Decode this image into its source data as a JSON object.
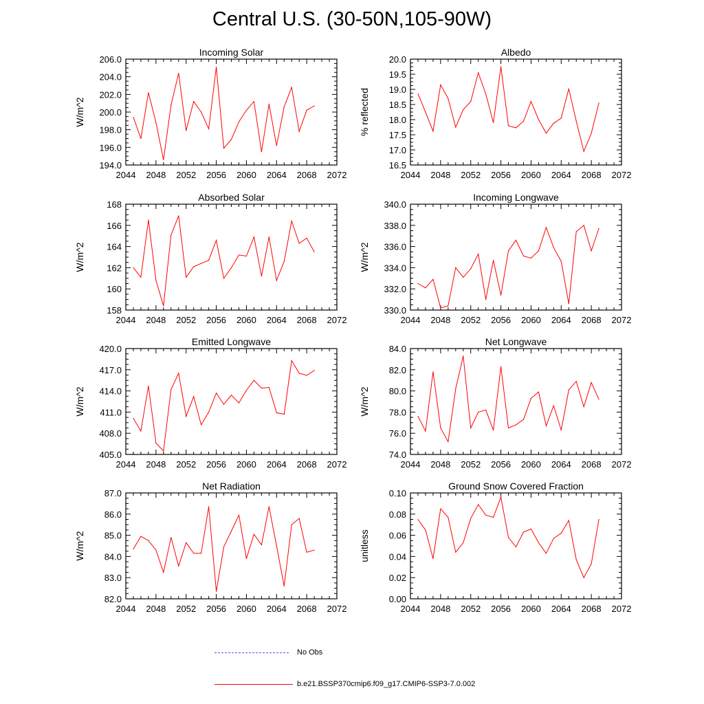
{
  "title": "Central U.S. (30-50N,105-90W)",
  "legend": {
    "no_obs_label": "No Obs",
    "model_label": "b.e21.BSSP370cmip6.f09_g17.CMIP6-SSP3-7.0.002",
    "no_obs_color": "#5050ff",
    "model_color": "#ff0000"
  },
  "chart_data": [
    {
      "type": "line",
      "title": "Incoming Solar",
      "xlabel": "",
      "ylabel": "W/m^2",
      "xlim": [
        2044,
        2072
      ],
      "ylim": [
        194,
        206
      ],
      "xticks": [
        "2044",
        "2048",
        "2052",
        "2056",
        "2060",
        "2064",
        "2068",
        "2072"
      ],
      "yticks": [
        "194.0",
        "196.0",
        "198.0",
        "200.0",
        "202.0",
        "204.0",
        "206.0"
      ],
      "x": [
        2045,
        2046,
        2047,
        2048,
        2049,
        2050,
        2051,
        2052,
        2053,
        2054,
        2055,
        2056,
        2057,
        2058,
        2059,
        2060,
        2061,
        2062,
        2063,
        2064,
        2065,
        2066,
        2067,
        2068,
        2069
      ],
      "series": [
        {
          "color": "#ff0000",
          "values": [
            199.4,
            197.0,
            202.2,
            198.8,
            194.6,
            200.8,
            204.4,
            197.9,
            201.2,
            200.0,
            198.1,
            205.1,
            195.9,
            196.9,
            198.9,
            200.2,
            201.2,
            195.5,
            200.9,
            196.2,
            200.6,
            202.8,
            197.8,
            200.2,
            200.7
          ]
        }
      ]
    },
    {
      "type": "line",
      "title": "Albedo",
      "xlabel": "",
      "ylabel": "% reflected",
      "xlim": [
        2044,
        2072
      ],
      "ylim": [
        16.5,
        20
      ],
      "xticks": [
        "2044",
        "2048",
        "2052",
        "2056",
        "2060",
        "2064",
        "2068",
        "2072"
      ],
      "yticks": [
        "16.5",
        "17.0",
        "17.5",
        "18.0",
        "18.5",
        "19.0",
        "19.5",
        "20.0"
      ],
      "x": [
        2045,
        2046,
        2047,
        2048,
        2049,
        2050,
        2051,
        2052,
        2053,
        2054,
        2055,
        2056,
        2057,
        2058,
        2059,
        2060,
        2061,
        2062,
        2063,
        2064,
        2065,
        2066,
        2067,
        2068,
        2069
      ],
      "series": [
        {
          "color": "#ff0000",
          "values": [
            18.85,
            18.25,
            17.62,
            19.15,
            18.7,
            17.75,
            18.33,
            18.6,
            19.55,
            18.85,
            17.9,
            19.75,
            17.8,
            17.73,
            17.95,
            18.6,
            18.0,
            17.55,
            17.88,
            18.05,
            19.02,
            17.95,
            16.95,
            17.55,
            18.55
          ]
        }
      ]
    },
    {
      "type": "line",
      "title": "Absorbed Solar",
      "xlabel": "",
      "ylabel": "W/m^2",
      "xlim": [
        2044,
        2072
      ],
      "ylim": [
        158,
        168
      ],
      "xticks": [
        "2044",
        "2048",
        "2052",
        "2056",
        "2060",
        "2064",
        "2068",
        "2072"
      ],
      "yticks": [
        "158",
        "160",
        "162",
        "164",
        "166",
        "168"
      ],
      "x": [
        2045,
        2046,
        2047,
        2048,
        2049,
        2050,
        2051,
        2052,
        2053,
        2054,
        2055,
        2056,
        2057,
        2058,
        2059,
        2060,
        2061,
        2062,
        2063,
        2064,
        2065,
        2066,
        2067,
        2068,
        2069
      ],
      "series": [
        {
          "color": "#ff0000",
          "values": [
            162.0,
            161.1,
            166.5,
            160.8,
            158.4,
            165.1,
            166.9,
            161.1,
            162.1,
            162.4,
            162.7,
            164.6,
            161.0,
            162.0,
            163.2,
            163.1,
            164.9,
            161.2,
            164.9,
            160.8,
            162.6,
            166.4,
            164.3,
            164.8,
            163.5
          ]
        }
      ]
    },
    {
      "type": "line",
      "title": "Incoming Longwave",
      "xlabel": "",
      "ylabel": "W/m^2",
      "xlim": [
        2044,
        2072
      ],
      "ylim": [
        330,
        340
      ],
      "xticks": [
        "2044",
        "2048",
        "2052",
        "2056",
        "2060",
        "2064",
        "2068",
        "2072"
      ],
      "yticks": [
        "330.0",
        "332.0",
        "334.0",
        "336.0",
        "338.0",
        "340.0"
      ],
      "x": [
        2045,
        2046,
        2047,
        2048,
        2049,
        2050,
        2051,
        2052,
        2053,
        2054,
        2055,
        2056,
        2057,
        2058,
        2059,
        2060,
        2061,
        2062,
        2063,
        2064,
        2065,
        2066,
        2067,
        2068,
        2069
      ],
      "series": [
        {
          "color": "#ff0000",
          "values": [
            332.5,
            332.1,
            332.9,
            330.2,
            330.4,
            334.0,
            333.1,
            333.9,
            335.3,
            331.0,
            334.7,
            331.4,
            335.6,
            336.6,
            335.1,
            334.9,
            335.6,
            337.8,
            335.9,
            334.6,
            330.6,
            337.4,
            338.0,
            335.6,
            337.7
          ]
        }
      ]
    },
    {
      "type": "line",
      "title": "Emitted Longwave",
      "xlabel": "",
      "ylabel": "W/m^2",
      "xlim": [
        2044,
        2072
      ],
      "ylim": [
        405,
        420
      ],
      "xticks": [
        "2044",
        "2048",
        "2052",
        "2056",
        "2060",
        "2064",
        "2068",
        "2072"
      ],
      "yticks": [
        "405.0",
        "408.0",
        "411.0",
        "414.0",
        "417.0",
        "420.0"
      ],
      "x": [
        2045,
        2046,
        2047,
        2048,
        2049,
        2050,
        2051,
        2052,
        2053,
        2054,
        2055,
        2056,
        2057,
        2058,
        2059,
        2060,
        2061,
        2062,
        2063,
        2064,
        2065,
        2066,
        2067,
        2068,
        2069
      ],
      "series": [
        {
          "color": "#ff0000",
          "values": [
            410.1,
            408.3,
            414.7,
            406.6,
            405.5,
            414.2,
            416.5,
            410.4,
            413.2,
            409.2,
            411.0,
            413.7,
            412.1,
            413.4,
            412.3,
            414.1,
            415.5,
            414.4,
            414.5,
            410.9,
            410.7,
            418.3,
            416.5,
            416.2,
            416.9
          ]
        }
      ]
    },
    {
      "type": "line",
      "title": "Net Longwave",
      "xlabel": "",
      "ylabel": "W/m^2",
      "xlim": [
        2044,
        2072
      ],
      "ylim": [
        74,
        84
      ],
      "xticks": [
        "2044",
        "2048",
        "2052",
        "2056",
        "2060",
        "2064",
        "2068",
        "2072"
      ],
      "yticks": [
        "74.0",
        "76.0",
        "78.0",
        "80.0",
        "82.0",
        "84.0"
      ],
      "x": [
        2045,
        2046,
        2047,
        2048,
        2049,
        2050,
        2051,
        2052,
        2053,
        2054,
        2055,
        2056,
        2057,
        2058,
        2059,
        2060,
        2061,
        2062,
        2063,
        2064,
        2065,
        2066,
        2067,
        2068,
        2069
      ],
      "series": [
        {
          "color": "#ff0000",
          "values": [
            77.6,
            76.2,
            81.8,
            76.5,
            75.2,
            80.2,
            83.3,
            76.5,
            78.0,
            78.2,
            76.3,
            82.3,
            76.5,
            76.8,
            77.3,
            79.3,
            79.9,
            76.7,
            78.6,
            76.3,
            80.1,
            80.9,
            78.5,
            80.8,
            79.2
          ]
        }
      ]
    },
    {
      "type": "line",
      "title": "Net Radiation",
      "xlabel": "",
      "ylabel": "W/m^2",
      "xlim": [
        2044,
        2072
      ],
      "ylim": [
        82,
        87
      ],
      "xticks": [
        "2044",
        "2048",
        "2052",
        "2056",
        "2060",
        "2064",
        "2068",
        "2072"
      ],
      "yticks": [
        "82.0",
        "83.0",
        "84.0",
        "85.0",
        "86.0",
        "87.0"
      ],
      "x": [
        2045,
        2046,
        2047,
        2048,
        2049,
        2050,
        2051,
        2052,
        2053,
        2054,
        2055,
        2056,
        2057,
        2058,
        2059,
        2060,
        2061,
        2062,
        2063,
        2064,
        2065,
        2066,
        2067,
        2068,
        2069
      ],
      "series": [
        {
          "color": "#ff0000",
          "values": [
            84.35,
            84.95,
            84.75,
            84.3,
            83.25,
            84.9,
            83.55,
            84.65,
            84.15,
            84.15,
            86.35,
            82.35,
            84.45,
            85.2,
            85.95,
            83.9,
            85.05,
            84.55,
            86.35,
            84.5,
            82.6,
            85.5,
            85.8,
            84.2,
            84.3
          ]
        }
      ]
    },
    {
      "type": "line",
      "title": "Ground Snow Covered Fraction",
      "xlabel": "",
      "ylabel": "unitless",
      "xlim": [
        2044,
        2072
      ],
      "ylim": [
        0,
        0.1
      ],
      "xticks": [
        "2044",
        "2048",
        "2052",
        "2056",
        "2060",
        "2064",
        "2068",
        "2072"
      ],
      "yticks": [
        "0.00",
        "0.02",
        "0.04",
        "0.06",
        "0.08",
        "0.10"
      ],
      "x": [
        2045,
        2046,
        2047,
        2048,
        2049,
        2050,
        2051,
        2052,
        2053,
        2054,
        2055,
        2056,
        2057,
        2058,
        2059,
        2060,
        2061,
        2062,
        2063,
        2064,
        2065,
        2066,
        2067,
        2068,
        2069
      ],
      "series": [
        {
          "color": "#ff0000",
          "values": [
            0.075,
            0.065,
            0.038,
            0.085,
            0.077,
            0.044,
            0.053,
            0.076,
            0.089,
            0.079,
            0.077,
            0.096,
            0.058,
            0.049,
            0.063,
            0.066,
            0.053,
            0.043,
            0.057,
            0.062,
            0.074,
            0.037,
            0.02,
            0.033,
            0.075
          ]
        }
      ]
    }
  ]
}
